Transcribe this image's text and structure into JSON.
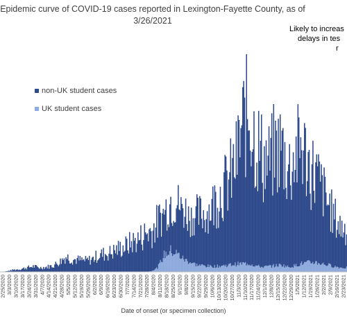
{
  "chart_data": {
    "type": "bar",
    "stacked": true,
    "title": "Epidemic curve of COVID-19 cases reported in Lexington-Fayette County, as of 3/26/2021",
    "title_line1": "Epidemic curve of COVID-19 cases reported in Lexington-Fayette County, as of",
    "title_line2": "3/26/2021",
    "annotation_line1": "Likely to increas",
    "annotation_line2": "delays in tes",
    "annotation_line3": "r",
    "xlabel": "Date of onset (or specimen collection)",
    "ylabel": "",
    "legend_position": "left-top",
    "grid": false,
    "x_start": "2/25/2020",
    "x_end": "3/25/2021",
    "categories": [
      "2/25/2020",
      "3/3/2020",
      "3/10/2020",
      "3/17/2020",
      "3/24/2020",
      "3/31/2020",
      "4/7/2020",
      "4/14/2020",
      "4/21/2020",
      "4/28/2020",
      "5/5/2020",
      "5/12/2020",
      "5/19/2020",
      "5/26/2020",
      "6/2/2020",
      "6/9/2020",
      "6/16/2020",
      "6/23/2020",
      "6/30/2020",
      "7/7/2020",
      "7/14/2020",
      "7/21/2020",
      "7/28/2020",
      "8/4/2020",
      "8/11/2020",
      "8/18/2020",
      "8/25/2020",
      "9/1/2020",
      "9/8/2020",
      "9/15/2020",
      "9/22/2020",
      "9/29/2020",
      "10/6/2020",
      "10/13/2020",
      "10/20/2020",
      "10/27/2020",
      "11/3/2020",
      "11/10/2020",
      "11/17/2020",
      "11/24/2020",
      "12/1/2020",
      "12/8/2020",
      "12/15/2020",
      "12/22/2020",
      "12/29/2020",
      "1/5/2021",
      "1/12/2021",
      "1/19/2021",
      "1/26/2021",
      "2/2/2021",
      "2/9/2021",
      "2/16/2021",
      "2/23/2021"
    ],
    "weekly_non_uk": [
      0,
      1,
      3,
      4,
      6,
      8,
      6,
      7,
      9,
      14,
      22,
      18,
      17,
      16,
      18,
      24,
      26,
      28,
      33,
      36,
      42,
      46,
      54,
      58,
      64,
      63,
      68,
      72,
      70,
      66,
      70,
      74,
      82,
      98,
      110,
      122,
      148,
      196,
      220,
      178,
      156,
      146,
      166,
      168,
      140,
      158,
      170,
      138,
      128,
      110,
      88,
      70,
      58
    ],
    "weekly_uk": [
      0,
      0,
      0,
      0,
      0,
      0,
      0,
      0,
      0,
      0,
      0,
      0,
      0,
      0,
      0,
      0,
      0,
      0,
      0,
      0,
      0,
      0,
      0,
      1,
      6,
      24,
      30,
      26,
      18,
      14,
      10,
      9,
      8,
      8,
      9,
      10,
      11,
      12,
      12,
      9,
      7,
      8,
      9,
      10,
      7,
      9,
      12,
      13,
      14,
      12,
      10,
      8,
      6
    ],
    "ylim": [
      0,
      290
    ],
    "series": [
      {
        "name": "non-UK student cases",
        "color": "#2F4B8C"
      },
      {
        "name": "UK student cases",
        "color": "#8FAADC"
      }
    ]
  }
}
